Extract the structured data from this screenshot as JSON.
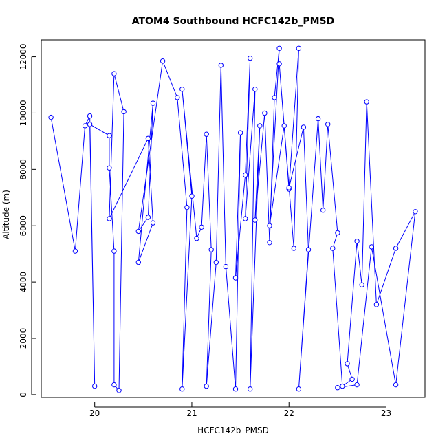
{
  "chart_data": {
    "type": "scatter",
    "title": "ATOM4 Southbound HCFC142b_PMSD",
    "xlabel": "HCFC142b_PMSD",
    "ylabel": "Altitude (m)",
    "xlim": [
      19.45,
      23.4
    ],
    "ylim": [
      -100,
      12600
    ],
    "xticks": [
      20,
      21,
      22,
      23
    ],
    "yticks": [
      0,
      2000,
      4000,
      6000,
      8000,
      10000,
      12000
    ],
    "grid": false,
    "legend": "none",
    "colors": {
      "series": "#0000ff",
      "axis": "#000000",
      "background": "#ffffff"
    },
    "series": [
      {
        "x": [
          19.55,
          19.8,
          19.9,
          19.95,
          20.0,
          19.95,
          20.15,
          20.15,
          20.2,
          20.2,
          20.25,
          20.3,
          20.2,
          20.15,
          20.55,
          20.6,
          20.45,
          20.6,
          20.55,
          20.45,
          20.7,
          20.85,
          20.95,
          20.9,
          21.0,
          20.9,
          21.05,
          21.1,
          21.15,
          21.2,
          21.15,
          21.25,
          21.3,
          21.35,
          21.45,
          21.5,
          21.45,
          21.55,
          21.6,
          21.55,
          21.65,
          21.6,
          21.7,
          21.65,
          21.75,
          21.8,
          21.85,
          21.9,
          21.8,
          21.95,
          22.0,
          21.9,
          22.05,
          22.1,
          22.0,
          22.15,
          22.2,
          22.1,
          22.3,
          22.35,
          22.4,
          22.5,
          22.45,
          22.55,
          22.65,
          22.6,
          22.7,
          22.75,
          22.8,
          22.9,
          23.1,
          23.3,
          23.1,
          22.85,
          22.7,
          22.5
        ],
        "y": [
          9850,
          5100,
          9550,
          9900,
          300,
          9600,
          9200,
          8050,
          5100,
          350,
          150,
          10050,
          11400,
          6250,
          9100,
          6100,
          4700,
          10350,
          6300,
          5800,
          11850,
          10550,
          6650,
          200,
          7050,
          10850,
          5550,
          5950,
          9250,
          5150,
          300,
          4700,
          11700,
          4550,
          200,
          9300,
          4150,
          7800,
          11950,
          6250,
          10850,
          200,
          9550,
          6200,
          10000,
          5400,
          10550,
          12300,
          6000,
          9550,
          7300,
          11750,
          5200,
          12300,
          7350,
          9500,
          5150,
          200,
          9800,
          6550,
          9600,
          5750,
          5200,
          300,
          550,
          1100,
          5450,
          3900,
          10400,
          3200,
          5200,
          6500,
          350,
          5250,
          350,
          250
        ]
      }
    ]
  }
}
